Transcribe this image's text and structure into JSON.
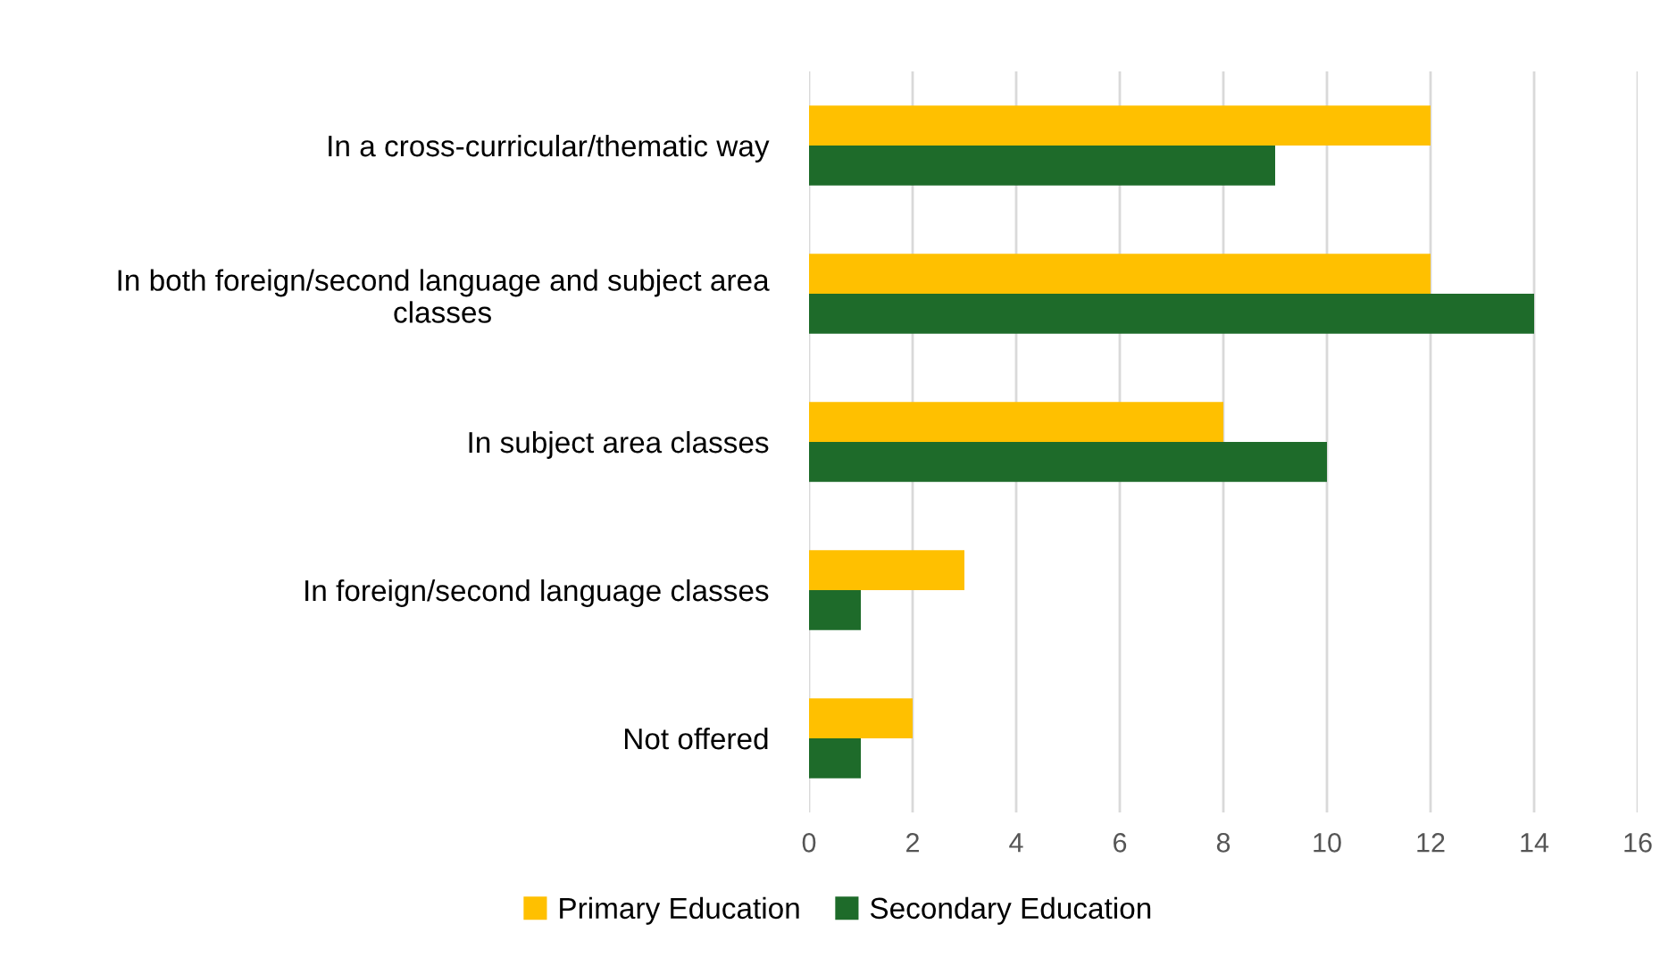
{
  "chart_data": {
    "type": "bar",
    "orientation": "horizontal",
    "categories": [
      "In a cross-curricular/thematic way",
      "In both foreign/second language and subject area\nclasses",
      "In subject area classes",
      "In foreign/second language classes",
      "Not offered"
    ],
    "series": [
      {
        "name": "Primary Education",
        "color": "#ffc000",
        "values": [
          12,
          12,
          8,
          3,
          2
        ]
      },
      {
        "name": "Secondary Education",
        "color": "#1e6b2a",
        "values": [
          9,
          14,
          10,
          1,
          1
        ]
      }
    ],
    "xlim": [
      0,
      16
    ],
    "xticks": [
      0,
      2,
      4,
      6,
      8,
      10,
      12,
      14,
      16
    ],
    "grid": "x",
    "legend": "bottom"
  }
}
